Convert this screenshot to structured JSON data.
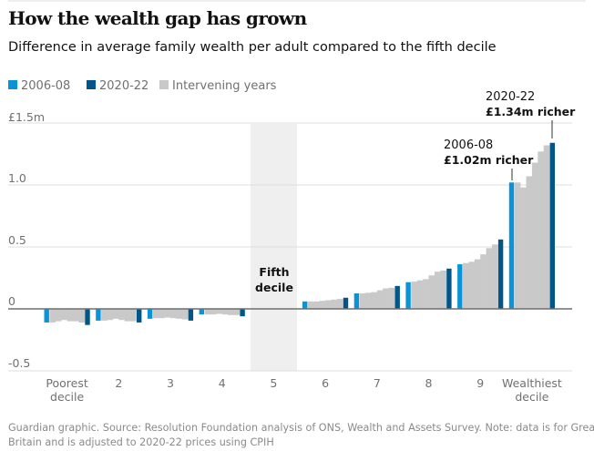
{
  "header": {
    "title": "How the wealth gap has grown",
    "subtitle": "Difference in average family wealth per adult compared to the fifth decile"
  },
  "legend": [
    {
      "label": "2006-08",
      "color": "#0a93d6"
    },
    {
      "label": "2020-22",
      "color": "#005689"
    },
    {
      "label": "Intervening years",
      "color": "#c9c9c9"
    }
  ],
  "annotations": {
    "a2006": {
      "period": "2006-08",
      "value": "£1.02m richer"
    },
    "a2020": {
      "period": "2020-22",
      "value": "£1.34m richer"
    },
    "fifth": {
      "line1": "Fifth",
      "line2": "decile"
    }
  },
  "footer": {
    "line1": "Guardian graphic. Source: Resolution Foundation analysis of ONS, Wealth and Assets Survey. Note: data is for Great",
    "line2": "Britain and is adjusted to 2020-22 prices using CPIH"
  },
  "chart_data": {
    "type": "bar",
    "title": "How the wealth gap has grown",
    "subtitle": "Difference in average family wealth per adult compared to the fifth decile",
    "unit": "£m",
    "ylim": [
      -0.5,
      1.5
    ],
    "yticks": [
      {
        "v": 1.5,
        "label": "£1.5m"
      },
      {
        "v": 1.0,
        "label": "1.0"
      },
      {
        "v": 0.5,
        "label": "0.5"
      },
      {
        "v": 0,
        "label": "0"
      },
      {
        "v": -0.5,
        "label": "-0.5"
      }
    ],
    "grid": true,
    "legend_position": "top-left",
    "categories": [
      [
        "Poorest",
        "decile"
      ],
      [
        "2"
      ],
      [
        "3"
      ],
      [
        "4"
      ],
      [
        "5"
      ],
      [
        "6"
      ],
      [
        "7"
      ],
      [
        "8"
      ],
      [
        "9"
      ],
      [
        "Wealthiest",
        "decile"
      ]
    ],
    "highlight_category": "5",
    "series_roles": [
      "2006-08",
      "intervening",
      "intervening",
      "intervening",
      "intervening",
      "intervening",
      "intervening",
      "2020-22"
    ],
    "values": [
      [
        -0.11,
        -0.11,
        -0.1,
        -0.09,
        -0.1,
        -0.1,
        -0.11,
        -0.13
      ],
      [
        -0.095,
        -0.095,
        -0.09,
        -0.08,
        -0.09,
        -0.1,
        -0.1,
        -0.11
      ],
      [
        -0.08,
        -0.075,
        -0.075,
        -0.07,
        -0.075,
        -0.08,
        -0.085,
        -0.095
      ],
      [
        -0.045,
        -0.045,
        -0.045,
        -0.04,
        -0.045,
        -0.05,
        -0.05,
        -0.06
      ],
      [
        0,
        0,
        0,
        0,
        0,
        0,
        0,
        0
      ],
      [
        0.06,
        0.06,
        0.06,
        0.065,
        0.07,
        0.075,
        0.08,
        0.09
      ],
      [
        0.125,
        0.125,
        0.13,
        0.135,
        0.15,
        0.165,
        0.17,
        0.185
      ],
      [
        0.215,
        0.22,
        0.23,
        0.24,
        0.27,
        0.3,
        0.31,
        0.325
      ],
      [
        0.36,
        0.37,
        0.38,
        0.4,
        0.44,
        0.49,
        0.52,
        0.56
      ],
      [
        1.02,
        1.02,
        0.98,
        1.07,
        1.18,
        1.27,
        1.32,
        1.34
      ]
    ]
  }
}
